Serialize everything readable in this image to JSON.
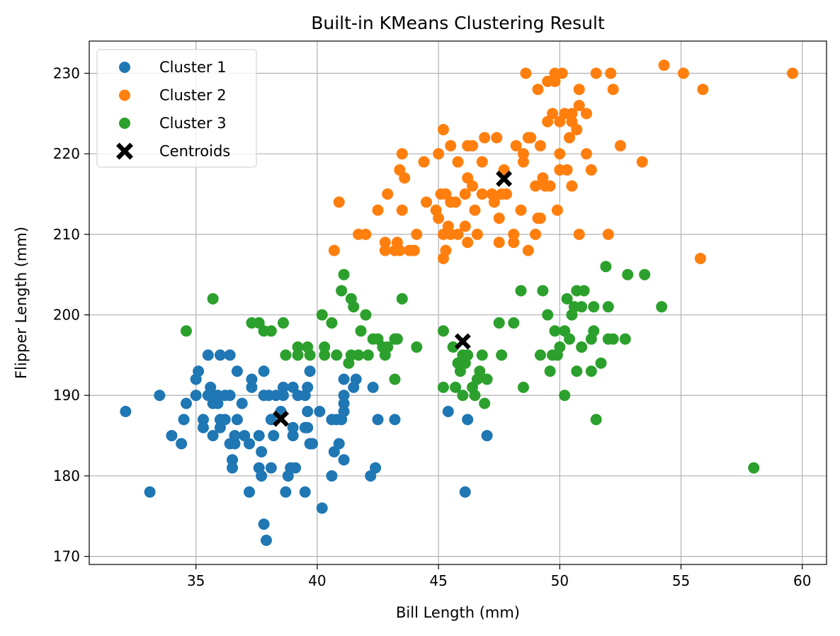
{
  "chart_data": {
    "type": "scatter",
    "title": "Built-in KMeans Clustering Result",
    "xlabel": "Bill Length (mm)",
    "ylabel": "Flipper Length (mm)",
    "xlim": [
      30.6,
      61.0
    ],
    "ylim": [
      169.0,
      234.0
    ],
    "xticks": [
      35,
      40,
      45,
      50,
      55,
      60
    ],
    "yticks": [
      170,
      180,
      190,
      200,
      210,
      220,
      230
    ],
    "grid": true,
    "legend_position": "top-left",
    "series": [
      {
        "name": "Cluster 1",
        "color": "#1f77b4",
        "marker": "circle",
        "points": [
          [
            32.1,
            188
          ],
          [
            33.1,
            178
          ],
          [
            33.5,
            190
          ],
          [
            34.0,
            185
          ],
          [
            34.4,
            184
          ],
          [
            34.5,
            187
          ],
          [
            34.6,
            189
          ],
          [
            35.0,
            192
          ],
          [
            35.0,
            190
          ],
          [
            35.1,
            193
          ],
          [
            35.3,
            186
          ],
          [
            35.3,
            187
          ],
          [
            35.5,
            190
          ],
          [
            35.5,
            195
          ],
          [
            35.6,
            191
          ],
          [
            35.7,
            185
          ],
          [
            35.7,
            189
          ],
          [
            35.9,
            189
          ],
          [
            35.9,
            190
          ],
          [
            36.0,
            186
          ],
          [
            36.0,
            187
          ],
          [
            36.2,
            187
          ],
          [
            36.2,
            190
          ],
          [
            36.4,
            190
          ],
          [
            36.4,
            184
          ],
          [
            36.5,
            182
          ],
          [
            36.5,
            181
          ],
          [
            36.6,
            184
          ],
          [
            36.6,
            185
          ],
          [
            36.7,
            187
          ],
          [
            36.7,
            193
          ],
          [
            36.0,
            195
          ],
          [
            36.4,
            195
          ],
          [
            36.9,
            189
          ],
          [
            37.0,
            185
          ],
          [
            37.2,
            184
          ],
          [
            37.2,
            178
          ],
          [
            37.3,
            191
          ],
          [
            37.3,
            192
          ],
          [
            37.6,
            185
          ],
          [
            37.6,
            181
          ],
          [
            37.7,
            180
          ],
          [
            37.7,
            183
          ],
          [
            37.8,
            174
          ],
          [
            37.9,
            172
          ],
          [
            37.8,
            190
          ],
          [
            37.8,
            193
          ],
          [
            38.0,
            190
          ],
          [
            38.1,
            181
          ],
          [
            38.1,
            187
          ],
          [
            38.2,
            185
          ],
          [
            38.3,
            190
          ],
          [
            38.5,
            188
          ],
          [
            38.6,
            190
          ],
          [
            38.6,
            191
          ],
          [
            38.7,
            178
          ],
          [
            38.8,
            180
          ],
          [
            38.9,
            181
          ],
          [
            39.0,
            191
          ],
          [
            39.0,
            185
          ],
          [
            39.0,
            186
          ],
          [
            39.1,
            181
          ],
          [
            39.2,
            190
          ],
          [
            39.5,
            190
          ],
          [
            39.5,
            186
          ],
          [
            39.5,
            178
          ],
          [
            39.6,
            191
          ],
          [
            39.6,
            186
          ],
          [
            39.6,
            188
          ],
          [
            39.7,
            184
          ],
          [
            39.7,
            193
          ],
          [
            39.8,
            184
          ],
          [
            40.1,
            188
          ],
          [
            40.2,
            176
          ],
          [
            40.6,
            180
          ],
          [
            40.6,
            187
          ],
          [
            40.7,
            183
          ],
          [
            40.8,
            187
          ],
          [
            40.9,
            184
          ],
          [
            41.1,
            182
          ],
          [
            41.0,
            187
          ],
          [
            41.1,
            188
          ],
          [
            41.1,
            189
          ],
          [
            41.1,
            190
          ],
          [
            41.1,
            192
          ],
          [
            41.5,
            191
          ],
          [
            41.6,
            192
          ],
          [
            42.2,
            180
          ],
          [
            42.3,
            191
          ],
          [
            42.4,
            181
          ],
          [
            42.5,
            187
          ],
          [
            43.2,
            187
          ],
          [
            45.4,
            188
          ],
          [
            46.2,
            187
          ],
          [
            46.1,
            178
          ],
          [
            47.0,
            185
          ]
        ]
      },
      {
        "name": "Cluster 2",
        "color": "#ff7f0e",
        "marker": "circle",
        "points": [
          [
            40.7,
            208
          ],
          [
            40.9,
            214
          ],
          [
            41.7,
            210
          ],
          [
            42.0,
            210
          ],
          [
            42.5,
            213
          ],
          [
            42.8,
            209
          ],
          [
            42.8,
            208
          ],
          [
            42.9,
            215
          ],
          [
            43.2,
            208
          ],
          [
            43.3,
            209
          ],
          [
            43.4,
            208
          ],
          [
            43.4,
            218
          ],
          [
            43.5,
            220
          ],
          [
            43.5,
            213
          ],
          [
            43.6,
            217
          ],
          [
            43.8,
            208
          ],
          [
            44.0,
            208
          ],
          [
            44.1,
            210
          ],
          [
            44.4,
            219
          ],
          [
            44.5,
            214
          ],
          [
            44.9,
            213
          ],
          [
            45.0,
            220
          ],
          [
            45.0,
            212
          ],
          [
            45.1,
            215
          ],
          [
            45.2,
            223
          ],
          [
            45.2,
            210
          ],
          [
            45.2,
            207
          ],
          [
            45.3,
            208
          ],
          [
            45.3,
            215
          ],
          [
            45.4,
            211
          ],
          [
            45.5,
            210
          ],
          [
            45.5,
            214
          ],
          [
            45.5,
            221
          ],
          [
            45.7,
            214
          ],
          [
            45.8,
            210
          ],
          [
            45.8,
            219
          ],
          [
            46.1,
            211
          ],
          [
            46.1,
            215
          ],
          [
            46.2,
            209
          ],
          [
            46.2,
            217
          ],
          [
            46.2,
            221
          ],
          [
            46.4,
            221
          ],
          [
            46.4,
            216
          ],
          [
            46.5,
            213
          ],
          [
            46.6,
            210
          ],
          [
            46.8,
            215
          ],
          [
            46.8,
            219
          ],
          [
            46.9,
            222
          ],
          [
            47.2,
            215
          ],
          [
            47.3,
            214
          ],
          [
            47.4,
            222
          ],
          [
            47.5,
            212
          ],
          [
            47.5,
            209
          ],
          [
            47.6,
            215
          ],
          [
            47.7,
            218
          ],
          [
            47.8,
            215
          ],
          [
            48.1,
            209
          ],
          [
            48.1,
            210
          ],
          [
            48.2,
            221
          ],
          [
            48.4,
            213
          ],
          [
            48.5,
            219
          ],
          [
            48.5,
            220
          ],
          [
            48.6,
            230
          ],
          [
            48.7,
            208
          ],
          [
            48.7,
            222
          ],
          [
            48.8,
            222
          ],
          [
            49.0,
            210
          ],
          [
            49.0,
            216
          ],
          [
            49.1,
            212
          ],
          [
            49.1,
            228
          ],
          [
            49.2,
            212
          ],
          [
            49.2,
            221
          ],
          [
            49.3,
            217
          ],
          [
            49.4,
            216
          ],
          [
            49.5,
            229
          ],
          [
            49.5,
            224
          ],
          [
            49.6,
            216
          ],
          [
            49.7,
            225
          ],
          [
            49.8,
            229
          ],
          [
            49.8,
            230
          ],
          [
            49.9,
            213
          ],
          [
            50.0,
            220
          ],
          [
            50.0,
            224
          ],
          [
            50.0,
            218
          ],
          [
            50.1,
            230
          ],
          [
            50.2,
            225
          ],
          [
            50.3,
            218
          ],
          [
            50.4,
            222
          ],
          [
            50.5,
            216
          ],
          [
            50.5,
            224
          ],
          [
            50.5,
            225
          ],
          [
            50.7,
            223
          ],
          [
            50.8,
            226
          ],
          [
            50.8,
            228
          ],
          [
            50.8,
            210
          ],
          [
            51.1,
            225
          ],
          [
            51.1,
            220
          ],
          [
            51.3,
            218
          ],
          [
            51.5,
            230
          ],
          [
            52.0,
            210
          ],
          [
            52.1,
            230
          ],
          [
            52.2,
            228
          ],
          [
            52.5,
            221
          ],
          [
            53.4,
            219
          ],
          [
            54.3,
            231
          ],
          [
            55.1,
            230
          ],
          [
            55.8,
            207
          ],
          [
            55.9,
            228
          ],
          [
            59.6,
            230
          ]
        ]
      },
      {
        "name": "Cluster 3",
        "color": "#2ca02c",
        "marker": "circle",
        "points": [
          [
            34.6,
            198
          ],
          [
            35.7,
            202
          ],
          [
            37.3,
            199
          ],
          [
            37.6,
            199
          ],
          [
            37.8,
            198
          ],
          [
            38.1,
            198
          ],
          [
            38.6,
            199
          ],
          [
            38.7,
            195
          ],
          [
            39.2,
            195
          ],
          [
            39.2,
            196
          ],
          [
            39.6,
            196
          ],
          [
            39.7,
            195
          ],
          [
            40.2,
            200
          ],
          [
            40.3,
            195
          ],
          [
            40.3,
            196
          ],
          [
            40.6,
            199
          ],
          [
            40.8,
            195
          ],
          [
            41.0,
            203
          ],
          [
            41.1,
            205
          ],
          [
            41.3,
            194
          ],
          [
            41.4,
            195
          ],
          [
            41.4,
            202
          ],
          [
            41.5,
            201
          ],
          [
            41.7,
            195
          ],
          [
            41.8,
            198
          ],
          [
            42.0,
            200
          ],
          [
            42.1,
            195
          ],
          [
            42.3,
            197
          ],
          [
            42.5,
            197
          ],
          [
            42.7,
            196
          ],
          [
            42.8,
            195
          ],
          [
            42.9,
            196
          ],
          [
            43.2,
            197
          ],
          [
            43.2,
            192
          ],
          [
            43.3,
            197
          ],
          [
            43.5,
            202
          ],
          [
            44.1,
            196
          ],
          [
            45.2,
            198
          ],
          [
            45.2,
            191
          ],
          [
            45.6,
            196
          ],
          [
            45.7,
            191
          ],
          [
            45.8,
            194
          ],
          [
            45.9,
            193
          ],
          [
            46.0,
            195
          ],
          [
            46.1,
            194
          ],
          [
            46.1,
            194
          ],
          [
            46.2,
            195
          ],
          [
            46.0,
            190
          ],
          [
            46.4,
            191
          ],
          [
            46.5,
            190
          ],
          [
            46.6,
            192
          ],
          [
            46.7,
            193
          ],
          [
            46.8,
            195
          ],
          [
            46.9,
            189
          ],
          [
            47.0,
            192
          ],
          [
            47.5,
            199
          ],
          [
            47.6,
            195
          ],
          [
            48.1,
            199
          ],
          [
            48.4,
            203
          ],
          [
            48.5,
            191
          ],
          [
            49.2,
            195
          ],
          [
            49.3,
            203
          ],
          [
            49.5,
            200
          ],
          [
            49.6,
            193
          ],
          [
            49.7,
            195
          ],
          [
            49.8,
            198
          ],
          [
            49.9,
            195
          ],
          [
            50.0,
            196
          ],
          [
            50.2,
            190
          ],
          [
            50.2,
            198
          ],
          [
            50.3,
            202
          ],
          [
            50.4,
            197
          ],
          [
            50.5,
            200
          ],
          [
            50.6,
            201
          ],
          [
            50.7,
            193
          ],
          [
            50.7,
            203
          ],
          [
            50.9,
            201
          ],
          [
            50.9,
            196
          ],
          [
            51.0,
            203
          ],
          [
            51.3,
            193
          ],
          [
            51.3,
            197
          ],
          [
            51.4,
            201
          ],
          [
            51.4,
            198
          ],
          [
            51.5,
            187
          ],
          [
            51.7,
            194
          ],
          [
            51.9,
            206
          ],
          [
            52.0,
            201
          ],
          [
            52.0,
            197
          ],
          [
            52.2,
            197
          ],
          [
            52.7,
            197
          ],
          [
            52.8,
            205
          ],
          [
            53.5,
            205
          ],
          [
            54.2,
            201
          ],
          [
            58.0,
            181
          ]
        ]
      },
      {
        "name": "Centroids",
        "color": "#000000",
        "marker": "x-filled",
        "points": [
          [
            38.5,
            187.1
          ],
          [
            46.0,
            196.7
          ],
          [
            47.7,
            216.9
          ]
        ]
      }
    ]
  }
}
